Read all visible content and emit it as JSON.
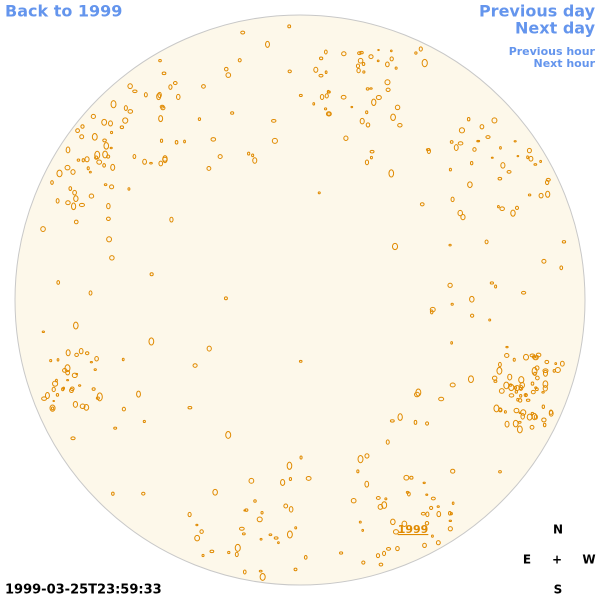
{
  "nav": {
    "back": "Back to 1999",
    "previous_day": "Previous day",
    "next_day": "Next day",
    "previous_hour": "Previous hour",
    "next_hour": "Next hour"
  },
  "disk": {
    "label": "1999"
  },
  "timestamp": "1999-03-25T23:59:33",
  "compass": {
    "north": "N",
    "east": "E",
    "center": "+",
    "west": "W",
    "south": "S"
  }
}
